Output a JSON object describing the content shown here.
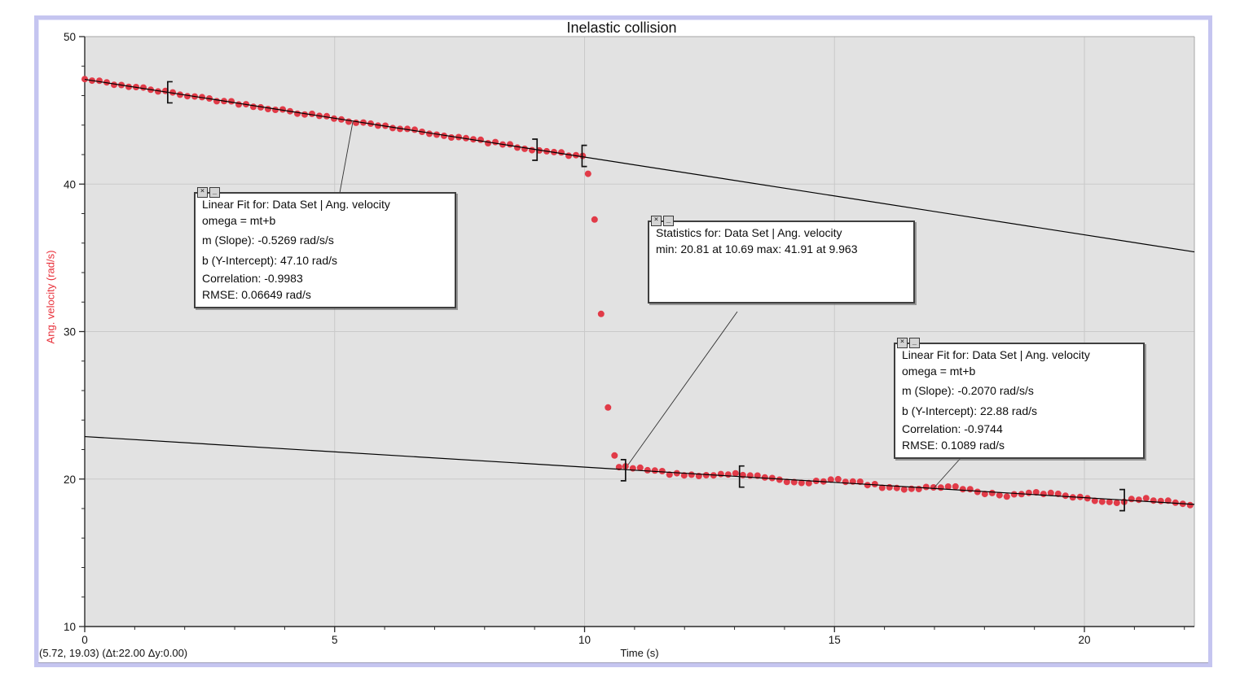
{
  "window_title": "Inelastic collision",
  "status_bar": {
    "readout": "(5.72, 19.03) (Δt:22.00 Δy:0.00)"
  },
  "chart_data": {
    "type": "scatter",
    "title": "Inelastic collision",
    "xlabel": "Time (s)",
    "ylabel": "Ang. velocity (rad/s)",
    "xlim": [
      0,
      22.2
    ],
    "ylim": [
      10,
      50
    ],
    "x_ticks": [
      0,
      5,
      10,
      15,
      20
    ],
    "y_ticks": [
      50,
      40,
      30,
      20,
      10
    ],
    "x_minor_step": 1,
    "y_minor_step": 2,
    "grid": "major",
    "point_color": "#e13b48",
    "fit_line_color": "#000000",
    "plot_bg": "#e2e2e2",
    "grid_color": "#c9c9c9",
    "segments": {
      "before_collision": {
        "description": "linear decay sampled points",
        "t_start": 0,
        "t_end": 9.83,
        "sample_step": 0.1467,
        "model": "omega = 47.10 - 0.5269*t",
        "slope": -0.5269,
        "intercept": 47.1,
        "noise": 0.09
      },
      "transition_points": [
        [
          9.963,
          41.91
        ],
        [
          10.07,
          40.7
        ],
        [
          10.2,
          37.6
        ],
        [
          10.33,
          31.2
        ],
        [
          10.47,
          24.85
        ],
        [
          10.6,
          21.6
        ],
        [
          10.69,
          20.81
        ]
      ],
      "after_collision": {
        "description": "linear decay sampled points with slight waviness",
        "t_start": 10.82,
        "t_end": 22.12,
        "sample_step": 0.1467,
        "model": "omega = 22.88 - 0.2070*t",
        "slope": -0.207,
        "intercept": 22.88,
        "noise": 0.1,
        "wave_amp": 0.16,
        "wave_freq": 3.0
      }
    },
    "fits": [
      {
        "name": "fit1",
        "slope": -0.5269,
        "intercept": 47.1,
        "draw_range": [
          0,
          22.2
        ],
        "bracket_range": [
          1.66,
          9.05
        ]
      },
      {
        "name": "fit2",
        "slope": -0.207,
        "intercept": 22.88,
        "draw_range": [
          0,
          22.2
        ],
        "bracket_range": [
          13.1,
          20.8
        ]
      }
    ],
    "stats_bracket": {
      "t_range": [
        9.95,
        10.82
      ],
      "anchor_omega": [
        41.91,
        20.6
      ]
    },
    "stats": {
      "min": 20.81,
      "min_at": 10.69,
      "max": 41.91,
      "max_at": 9.963
    }
  },
  "annotations": {
    "fit1_box": {
      "lines": [
        "Linear Fit for: Data Set | Ang. velocity",
        "omega = mt+b",
        "m (Slope): -0.5269 rad/s/s",
        "b (Y-Intercept): 47.10 rad/s",
        "Correlation: -0.9983",
        "RMSE: 0.06649 rad/s"
      ]
    },
    "stats_box": {
      "lines": [
        "Statistics for: Data Set | Ang. velocity",
        "min: 20.81 at 10.69 max: 41.91 at 9.963"
      ]
    },
    "fit2_box": {
      "lines": [
        "Linear Fit for: Data Set | Ang. velocity",
        "omega = mt+b",
        "m (Slope): -0.2070 rad/s/s",
        "b (Y-Intercept): 22.88 rad/s",
        "Correlation: -0.9744",
        "RMSE: 0.1089 rad/s"
      ]
    },
    "close_glyph": "×",
    "collapse_glyph": "_"
  }
}
